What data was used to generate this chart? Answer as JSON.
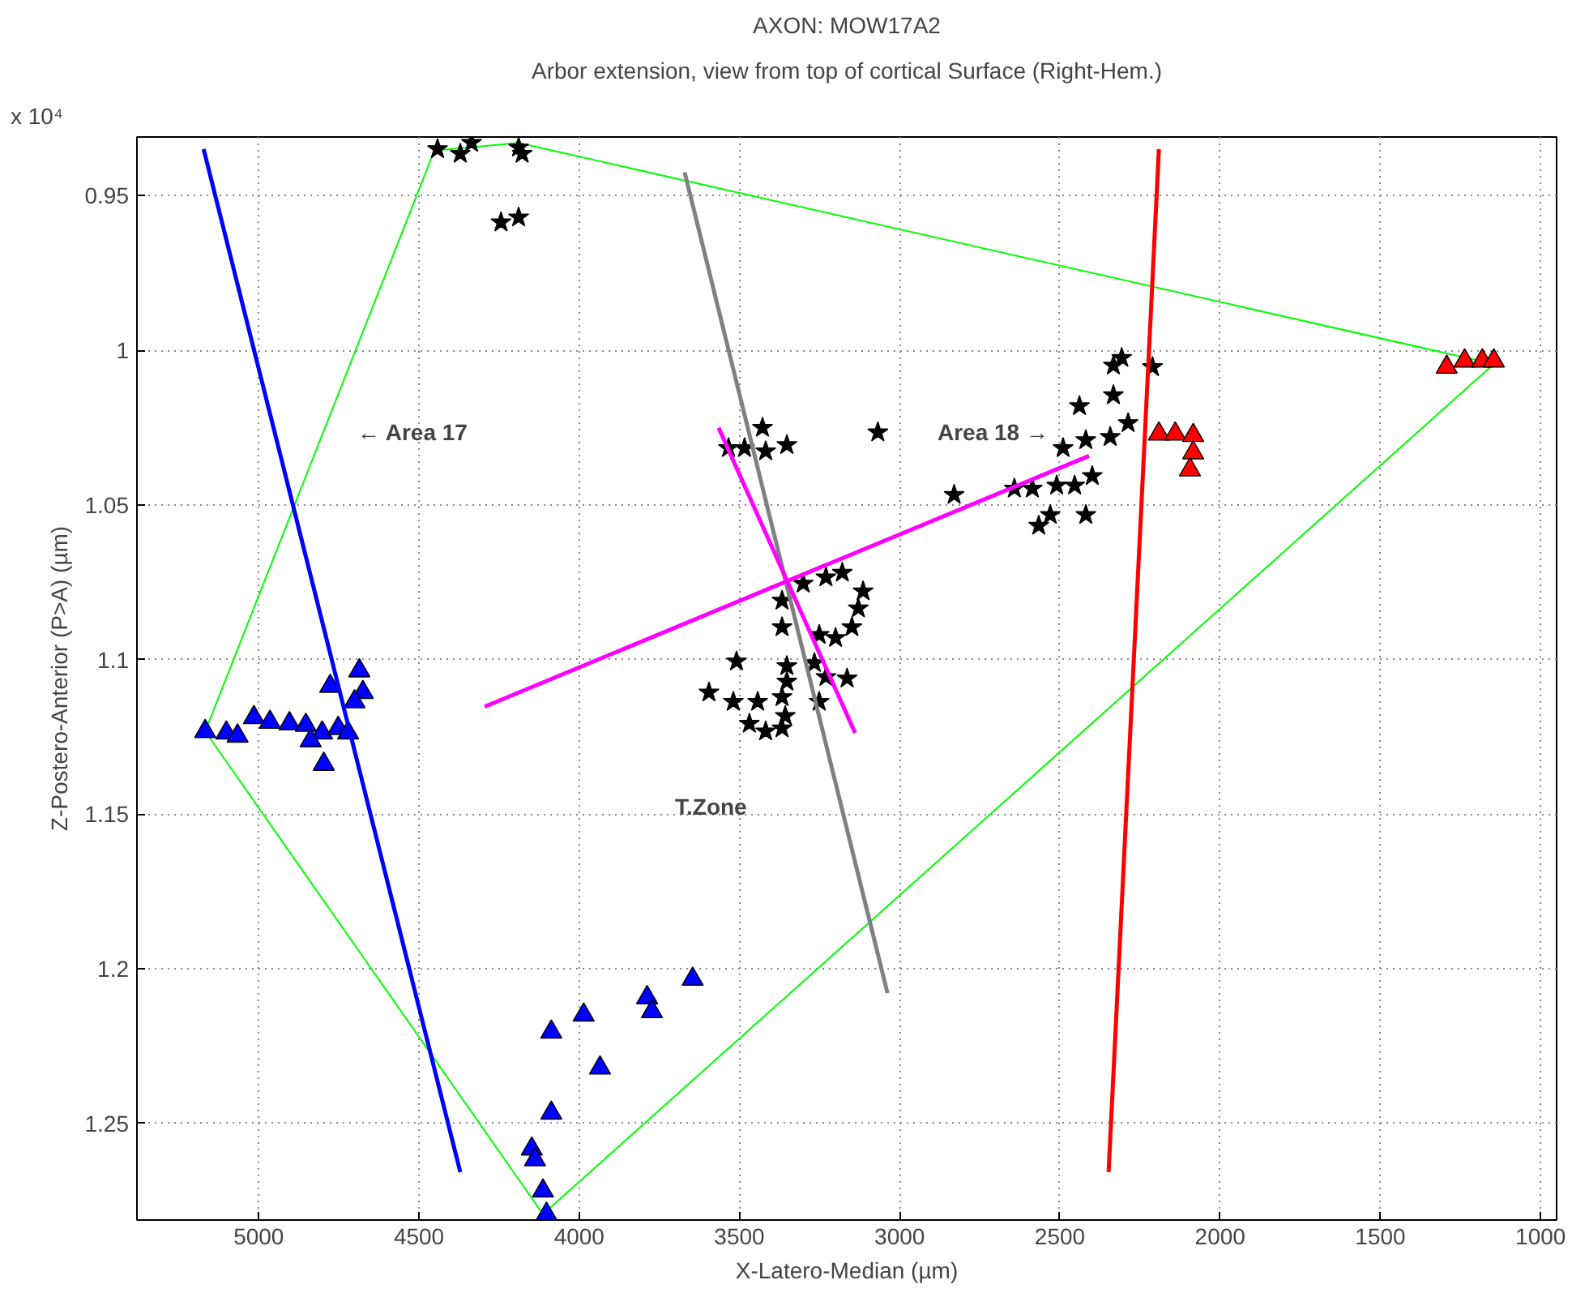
{
  "chart_data": {
    "type": "scatter",
    "title": "AXON: MOW17A2",
    "subtitle": "Arbor extension, view from top of cortical Surface (Right-Hem.)",
    "xlabel": "X-Latero-Median (µm)",
    "ylabel": "Z-Postero-Anterior (P>A) (µm)",
    "xlim": [
      5380,
      950
    ],
    "ylim": [
      1.2812,
      0.931
    ],
    "xticks": [
      5000,
      4500,
      4000,
      3500,
      3000,
      2500,
      2000,
      1500,
      1000
    ],
    "yticks": [
      0.95,
      1,
      1.05,
      1.1,
      1.15,
      1.2,
      1.25
    ],
    "grid": true,
    "annotations": [
      "x 10⁴",
      "← Area 17",
      "Area 18 →",
      "T.Zone"
    ],
    "series": [
      {
        "type": "line",
        "color": "#00ff00",
        "marker": "none",
        "x": [
          5167,
          4452
        ],
        "values": [
          1.1232,
          0.9354
        ]
      },
      {
        "type": "line",
        "color": "#00ff00",
        "marker": "none",
        "x": [
          4452,
          4189
        ],
        "values": [
          0.9354,
          0.9329
        ]
      },
      {
        "type": "line",
        "color": "#00ff00",
        "marker": "none",
        "x": [
          4189,
          1146
        ],
        "values": [
          0.9329,
          1.0044
        ]
      },
      {
        "type": "line",
        "color": "#00ff00",
        "marker": "none",
        "x": [
          1146,
          4113
        ],
        "values": [
          1.0044,
          1.2793
        ]
      },
      {
        "type": "line",
        "color": "#00ff00",
        "marker": "none",
        "x": [
          4113,
          5167
        ],
        "values": [
          1.2793,
          1.1232
        ]
      },
      {
        "color": "#0000ff",
        "marker": "triangle",
        "x": [
          5167,
          5101,
          5066,
          5015,
          4965,
          4904,
          4853,
          4802,
          4838,
          4752,
          4721,
          4777,
          4686,
          4675,
          4701,
          4797,
          4087,
          3986,
          3788,
          3773,
          3646,
          3935,
          4087,
          4148,
          4138,
          4113,
          4102
        ],
        "values": [
          1.1232,
          1.1237,
          1.1247,
          1.1187,
          1.1202,
          1.1207,
          1.1212,
          1.1237,
          1.1262,
          1.1222,
          1.1237,
          1.1086,
          1.1036,
          1.1106,
          1.1136,
          1.1338,
          1.2204,
          1.2149,
          1.2093,
          1.2138,
          1.2033,
          1.232,
          1.2466,
          1.2582,
          1.2617,
          1.2718,
          1.2793
        ]
      },
      {
        "color": "#ff0000",
        "marker": "triangle",
        "x": [
          1293,
          1237,
          1182,
          1146,
          2191,
          2140,
          2084,
          2084,
          2094
        ],
        "values": [
          1.0054,
          1.0034,
          1.0034,
          1.0034,
          1.027,
          1.027,
          1.0275,
          1.0331,
          1.0386
        ]
      },
      {
        "color": "#000000",
        "marker": "star",
        "x": [
          4442,
          4371,
          4336,
          4189,
          4178,
          4244,
          4189,
          3534,
          3484,
          3428,
          3418,
          3352,
          3068,
          3367,
          3301,
          3230,
          3179,
          3114,
          3129,
          3149,
          3200,
          3251,
          3367,
          3509,
          3352,
          3266,
          3352,
          3367,
          3230,
          3164,
          3595,
          3519,
          3443,
          3469,
          3418,
          3367,
          3357,
          3251,
          2307,
          2333,
          2211,
          2333,
          2439,
          2287,
          2343,
          2419,
          2490,
          2586,
          2642,
          2510,
          2454,
          2399,
          2830,
          2530,
          2419,
          2566
        ],
        "values": [
          0.9349,
          0.9364,
          0.9329,
          0.9344,
          0.9364,
          0.9586,
          0.957,
          1.0316,
          1.0316,
          1.025,
          1.0326,
          1.0306,
          1.0265,
          1.0809,
          1.0754,
          1.0734,
          1.0719,
          1.0779,
          1.0834,
          1.0895,
          1.093,
          1.092,
          1.0895,
          1.1006,
          1.1021,
          1.1011,
          1.1071,
          1.1121,
          1.1056,
          1.1061,
          1.1106,
          1.1136,
          1.1136,
          1.1207,
          1.1232,
          1.1222,
          1.1182,
          1.1136,
          1.0024,
          1.0049,
          1.0054,
          1.0145,
          1.018,
          1.0235,
          1.028,
          1.029,
          1.0316,
          1.0447,
          1.0447,
          1.0437,
          1.0437,
          1.0406,
          1.0467,
          1.0532,
          1.0532,
          1.0567
        ]
      },
      {
        "type": "line",
        "color": "#0000ff",
        "marker": "none",
        "x": [
          5172,
          4371
        ],
        "values": [
          0.9349,
          1.2657
        ]
      },
      {
        "type": "line",
        "color": "#ff0000",
        "marker": "none",
        "x": [
          2191,
          2348
        ],
        "values": [
          0.9349,
          1.2657
        ]
      },
      {
        "type": "line",
        "color": "#808080",
        "marker": "none",
        "x": [
          3671,
          3038
        ],
        "values": [
          0.9424,
          1.2078
        ]
      },
      {
        "type": "line",
        "color": "#ff00ff",
        "marker": "none",
        "x": [
          4295,
          2409
        ],
        "values": [
          1.1152,
          1.0341
        ]
      },
      {
        "type": "line",
        "color": "#ff00ff",
        "marker": "none",
        "x": [
          3565,
          3139
        ],
        "values": [
          1.025,
          1.1237
        ]
      }
    ]
  }
}
